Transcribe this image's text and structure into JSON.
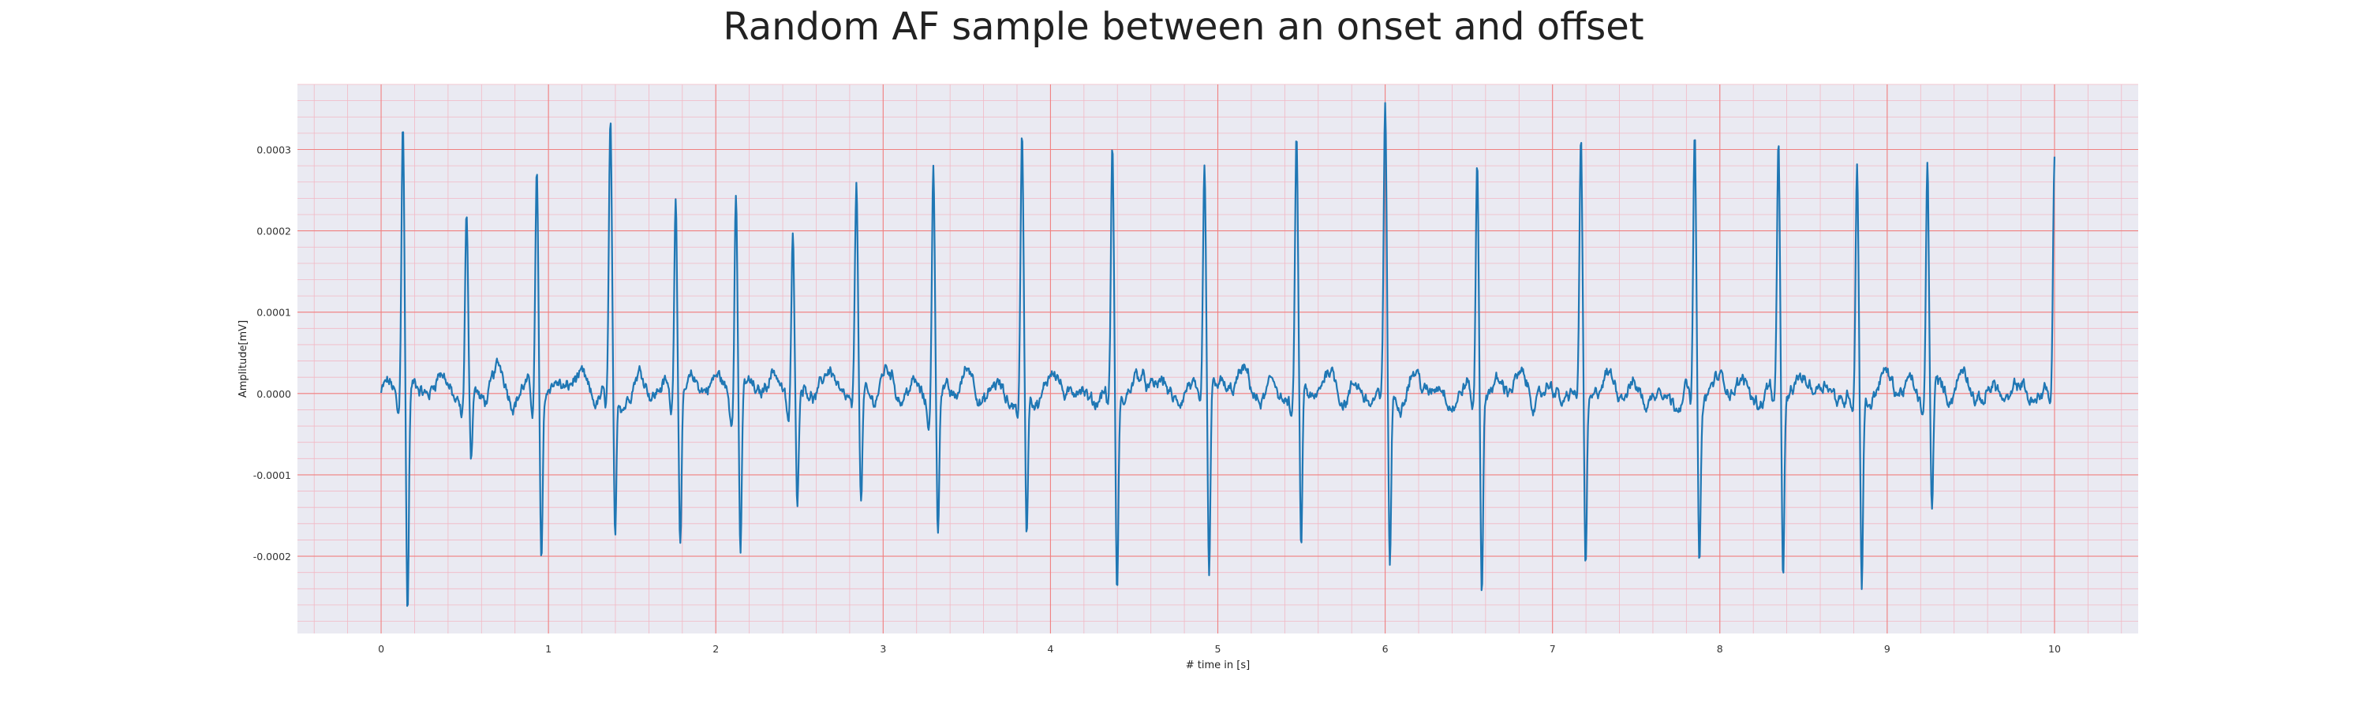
{
  "chart_data": {
    "type": "line",
    "title": "Random AF sample between an onset and offset",
    "xlabel": "# time in [s]",
    "ylabel": "Amplitude[mV]",
    "xlim": [
      -0.5,
      10.5
    ],
    "ylim": [
      -0.000295,
      0.00038
    ],
    "x_ticks": [
      0,
      1,
      2,
      3,
      4,
      5,
      6,
      7,
      8,
      9,
      10
    ],
    "y_ticks": [
      -0.0002,
      -0.0001,
      0.0,
      0.0001,
      0.0002,
      0.0003
    ],
    "y_tick_labels": [
      "-0.0002",
      "-0.0001",
      "0.0000",
      "0.0001",
      "0.0002",
      "0.0003"
    ],
    "grid": true,
    "minor_grid": true,
    "colors": {
      "background": "#eaeaf2",
      "major_grid": "#f08080",
      "minor_grid": "#f2b8c4",
      "line": "#1f77b4"
    },
    "series": [
      {
        "name": "",
        "peaks": [
          {
            "t": 0.13,
            "r": 0.00035,
            "s": -0.000268
          },
          {
            "t": 0.51,
            "r": 0.000213,
            "s": -9e-05
          },
          {
            "t": 0.93,
            "r": 0.000283,
            "s": -0.000205
          },
          {
            "t": 1.37,
            "r": 0.00032,
            "s": -0.00019
          },
          {
            "t": 1.76,
            "r": 0.000258,
            "s": -0.000165
          },
          {
            "t": 2.12,
            "r": 0.000263,
            "s": -0.000195
          },
          {
            "t": 2.46,
            "r": 0.000196,
            "s": -0.000135
          },
          {
            "t": 2.84,
            "r": 0.00024,
            "s": -0.000145
          },
          {
            "t": 3.3,
            "r": 0.000278,
            "s": -0.00018
          },
          {
            "t": 3.83,
            "r": 0.000305,
            "s": -0.00018
          },
          {
            "t": 4.37,
            "r": 0.000298,
            "s": -0.00024
          },
          {
            "t": 4.92,
            "r": 0.000283,
            "s": -0.000222
          },
          {
            "t": 5.47,
            "r": 0.00031,
            "s": -0.000205
          },
          {
            "t": 6.0,
            "r": 0.00035,
            "s": -0.000215
          },
          {
            "t": 6.55,
            "r": 0.000293,
            "s": -0.000228
          },
          {
            "t": 7.17,
            "r": 0.000307,
            "s": -0.000215
          },
          {
            "t": 7.85,
            "r": 0.000315,
            "s": -0.000212
          },
          {
            "t": 8.35,
            "r": 0.000298,
            "s": -0.000212
          },
          {
            "t": 8.82,
            "r": 0.000273,
            "s": -0.00023
          },
          {
            "t": 9.24,
            "r": 0.000285,
            "s": -0.000148
          },
          {
            "t": 10.0,
            "r": 0.000289,
            "s": -5e-05
          }
        ],
        "t_start": 0.0,
        "t_end": 10.0
      }
    ]
  }
}
